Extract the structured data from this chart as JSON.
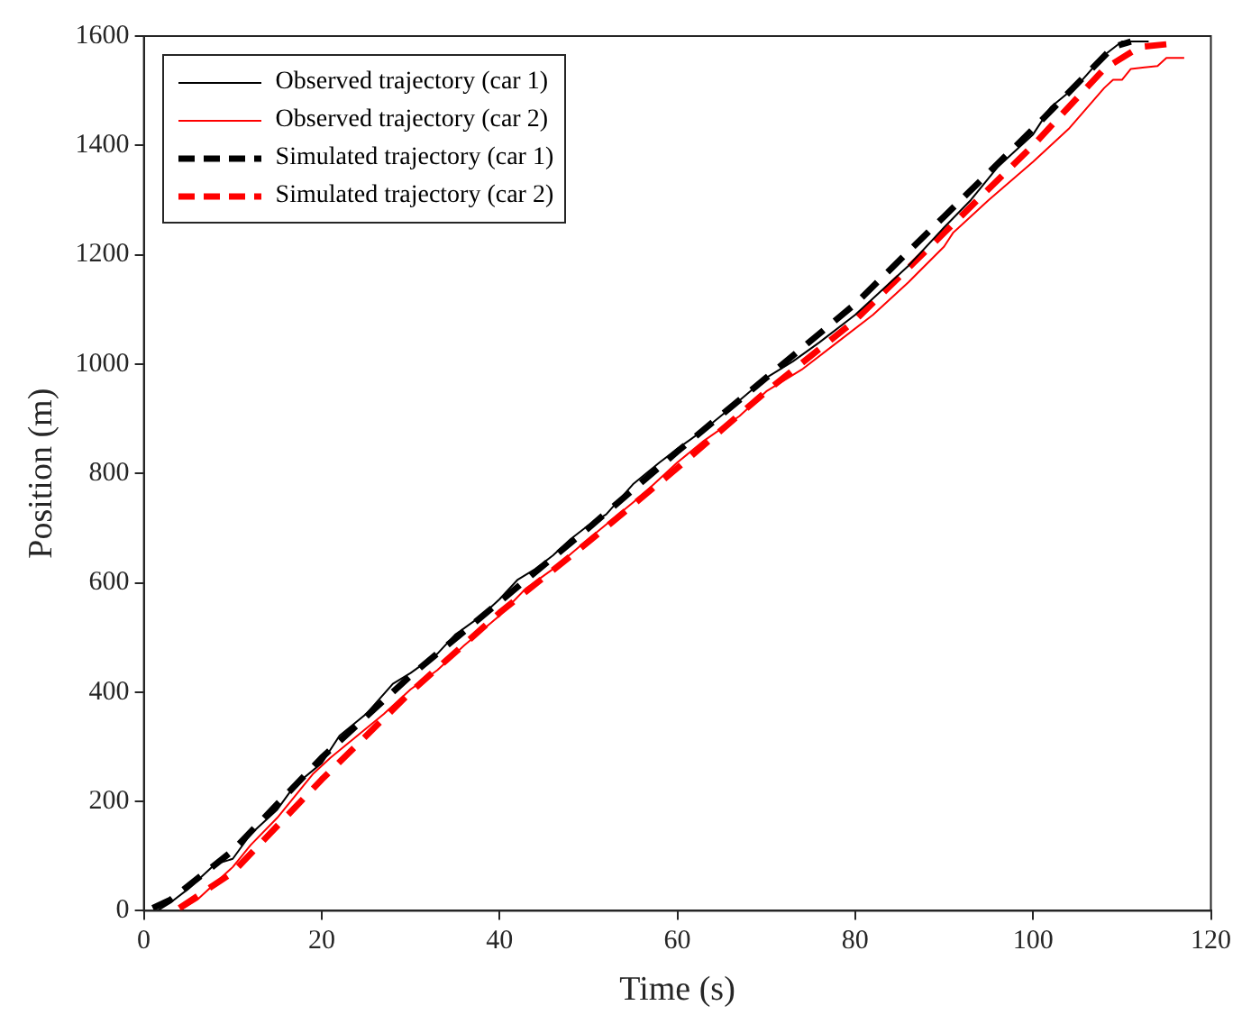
{
  "chart_data": {
    "type": "line",
    "xlabel": "Time (s)",
    "ylabel": "Position (m)",
    "xlim": [
      0,
      120
    ],
    "xticks": [
      0,
      20,
      40,
      60,
      80,
      100,
      120
    ],
    "ylim": [
      0,
      1600
    ],
    "yticks": [
      0,
      200,
      400,
      600,
      800,
      1000,
      1200,
      1400,
      1600
    ],
    "grid": false,
    "legend": "top left",
    "marker": "none",
    "series": [
      {
        "name": "Observed trajectory (car 1)",
        "color": "#000000",
        "line_style": "solid",
        "x": [
          1.5,
          3,
          5,
          8,
          10,
          12,
          15,
          17,
          20,
          22,
          25,
          28,
          30,
          33,
          35,
          38,
          40,
          42,
          44,
          46,
          48,
          50,
          52,
          55,
          58,
          60,
          63,
          66,
          70,
          73,
          76,
          80,
          83,
          86,
          90,
          93,
          96,
          100,
          102,
          105,
          108,
          110,
          113
        ],
        "values": [
          0,
          15,
          40,
          85,
          95,
          140,
          185,
          230,
          270,
          320,
          360,
          415,
          435,
          470,
          505,
          540,
          570,
          605,
          625,
          650,
          680,
          705,
          725,
          780,
          820,
          845,
          880,
          920,
          975,
          1005,
          1040,
          1090,
          1135,
          1180,
          1250,
          1300,
          1360,
          1420,
          1470,
          1510,
          1565,
          1590,
          1590
        ]
      },
      {
        "name": "Observed trajectory (car 2)",
        "color": "#ff0000",
        "line_style": "solid",
        "x": [
          4,
          6,
          8,
          10,
          12,
          15,
          17,
          19,
          21,
          24,
          27,
          30,
          33,
          36,
          40,
          43,
          46,
          50,
          53,
          56,
          60,
          63,
          67,
          70,
          74,
          78,
          82,
          86,
          90,
          91,
          95,
          100,
          104,
          108,
          109,
          110,
          111,
          114,
          115,
          117
        ],
        "values": [
          0,
          20,
          50,
          80,
          120,
          170,
          210,
          250,
          280,
          320,
          360,
          405,
          440,
          485,
          540,
          590,
          625,
          680,
          720,
          760,
          820,
          860,
          905,
          950,
          990,
          1040,
          1090,
          1150,
          1215,
          1240,
          1300,
          1370,
          1430,
          1505,
          1520,
          1520,
          1540,
          1545,
          1560,
          1560
        ]
      },
      {
        "name": "Simulated trajectory (car 1)",
        "color": "#000000",
        "line_style": "dashed",
        "x": [
          1,
          3,
          10,
          20,
          30,
          40,
          50,
          60,
          70,
          80,
          90,
          100,
          106,
          109,
          111
        ],
        "values": [
          5,
          20,
          110,
          280,
          430,
          565,
          700,
          840,
          975,
          1110,
          1270,
          1430,
          1530,
          1580,
          1590
        ]
      },
      {
        "name": "Simulated trajectory (car 2)",
        "color": "#ff0000",
        "line_style": "dashed",
        "x": [
          4,
          10,
          20,
          30,
          40,
          50,
          60,
          70,
          80,
          90,
          100,
          108,
          112,
          115
        ],
        "values": [
          5,
          70,
          240,
          400,
          545,
          675,
          810,
          950,
          1080,
          1240,
          1400,
          1540,
          1580,
          1585
        ]
      }
    ]
  }
}
